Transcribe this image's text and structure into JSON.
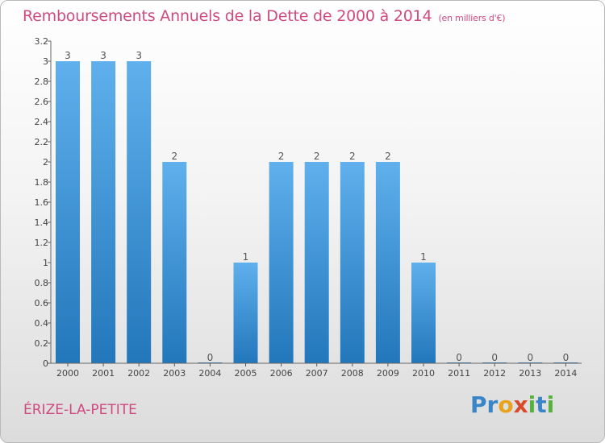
{
  "header": {
    "title": "Remboursements Annuels de la Dette de 2000 à 2014",
    "unit": "(en milliers d'€)"
  },
  "footer": {
    "commune": "ÉRIZE-LA-PETITE",
    "logo_letters": [
      "P",
      "r",
      "o",
      "x",
      "i",
      "t",
      "i"
    ]
  },
  "colors": {
    "accent": "#d04a80",
    "bar_top": "#5fb0ec",
    "bar_bottom": "#2277bb"
  },
  "chart_data": {
    "type": "bar",
    "categories": [
      "2000",
      "2001",
      "2002",
      "2003",
      "2004",
      "2005",
      "2006",
      "2007",
      "2008",
      "2009",
      "2010",
      "2011",
      "2012",
      "2013",
      "2014"
    ],
    "values": [
      3,
      3,
      3,
      2,
      0,
      1,
      2,
      2,
      2,
      2,
      1,
      0,
      0,
      0,
      0
    ],
    "value_labels": [
      "3",
      "3",
      "3",
      "2",
      "0",
      "1",
      "2",
      "2",
      "2",
      "2",
      "1",
      "0",
      "0",
      "0",
      "0"
    ],
    "ylim": [
      0,
      3.2
    ],
    "yticks": [
      0,
      0.2,
      0.4,
      0.6,
      0.8,
      1,
      1.2,
      1.4,
      1.6,
      1.8,
      2,
      2.2,
      2.4,
      2.6,
      2.8,
      3,
      3.2
    ],
    "ytick_labels": [
      "0",
      "0.2",
      "0.4",
      "0.6",
      "0.8",
      "1",
      "1.2",
      "1.4",
      "1.6",
      "1.8",
      "2",
      "2.2",
      "2.4",
      "2.6",
      "2.8",
      "3",
      "3.2"
    ],
    "grid": false,
    "title": "Remboursements Annuels de la Dette de 2000 à 2014"
  }
}
